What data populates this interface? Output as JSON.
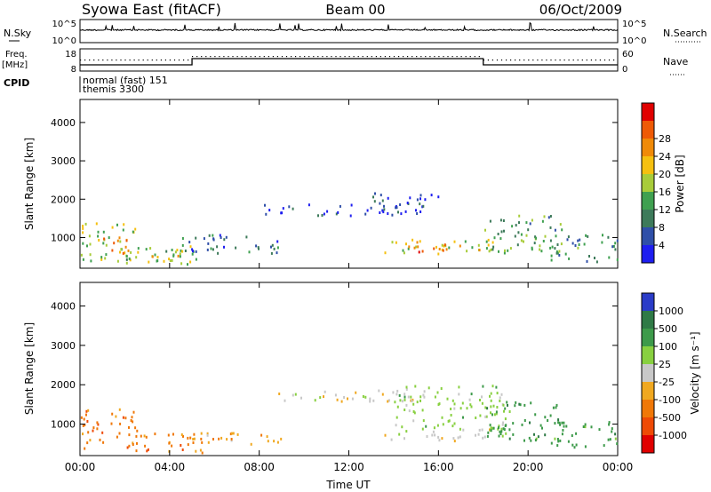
{
  "header": {
    "title": "Syowa East (fitACF)",
    "beam": "Beam 00",
    "date": "06/Oct/2009"
  },
  "status_panels": {
    "nsky_label": "N.Sky",
    "nsearch_label": "N.Search",
    "freq_label_line1": "Freq.",
    "freq_label_line2": "[MHz]",
    "nave_label": "Nave",
    "cpid_label": "CPID",
    "count_ticks_left": [
      "10^5",
      "10^0"
    ],
    "count_ticks_right": [
      "10^5",
      "10^0"
    ],
    "freq_ticks": [
      "18",
      "8"
    ],
    "nave_ticks": [
      "60",
      "0"
    ],
    "cpid_lines": [
      "normal (fast) 151",
      "themis 3300"
    ],
    "frequency_step_hours": [
      5.0,
      18.0
    ]
  },
  "chart_data": [
    {
      "type": "heatmap",
      "panel": "power",
      "ylabel": "Slant Range [km]",
      "y_ticks": [
        "1000",
        "2000",
        "3000",
        "4000"
      ],
      "ylim": [
        200,
        4600
      ],
      "xlim": [
        0,
        24
      ],
      "colorbar_label": "Power [dB]",
      "colorbar_ticks": [
        "4",
        "8",
        "12",
        "16",
        "20",
        "24",
        "28"
      ],
      "colorscale": [
        "#1e1ef0",
        "#2f4fa8",
        "#3d7a5a",
        "#3fa050",
        "#a8cc3a",
        "#f5c010",
        "#f08a08",
        "#ee5a06",
        "#e00000"
      ],
      "echo_regions": [
        {
          "start": 0.0,
          "end": 2.6,
          "lo": 400,
          "hi": 1400,
          "level": 0.5
        },
        {
          "start": 0.8,
          "end": 2.2,
          "lo": 600,
          "hi": 1100,
          "level": 0.75
        },
        {
          "start": 2.0,
          "end": 5.2,
          "lo": 300,
          "hi": 800,
          "level": 0.45
        },
        {
          "start": 3.0,
          "end": 4.5,
          "lo": 350,
          "hi": 600,
          "level": 0.7
        },
        {
          "start": 4.5,
          "end": 9.0,
          "lo": 600,
          "hi": 1100,
          "level": 0.2
        },
        {
          "start": 8.2,
          "end": 15.5,
          "lo": 1600,
          "hi": 1900,
          "level": 0.05
        },
        {
          "start": 13.0,
          "end": 16.0,
          "lo": 1800,
          "hi": 2200,
          "level": 0.08
        },
        {
          "start": 13.5,
          "end": 18.5,
          "lo": 600,
          "hi": 1000,
          "level": 0.55
        },
        {
          "start": 15.0,
          "end": 17.5,
          "lo": 650,
          "hi": 850,
          "level": 0.8
        },
        {
          "start": 18.0,
          "end": 21.5,
          "lo": 600,
          "hi": 1600,
          "level": 0.35
        },
        {
          "start": 21.0,
          "end": 24.0,
          "lo": 400,
          "hi": 1100,
          "level": 0.3
        }
      ]
    },
    {
      "type": "heatmap",
      "panel": "velocity",
      "ylabel": "Slant Range [km]",
      "y_ticks": [
        "1000",
        "2000",
        "3000",
        "4000"
      ],
      "ylim": [
        200,
        4600
      ],
      "xlim": [
        0,
        24
      ],
      "x_ticks": [
        "00:00",
        "04:00",
        "08:00",
        "12:00",
        "16:00",
        "20:00",
        "00:00"
      ],
      "xlabel": "Time UT",
      "colorbar_label": "Velocity [m s⁻¹]",
      "colorbar_ticks": [
        "1000",
        "500",
        "100",
        "25",
        "-25",
        "-100",
        "-500",
        "-1000"
      ],
      "colorscale": [
        "#2a3cc8",
        "#2f7a46",
        "#3d9a4a",
        "#88d040",
        "#c8c8c8",
        "#f0a820",
        "#f07808",
        "#ee4a06",
        "#e00000"
      ],
      "echo_regions": [
        {
          "start": 0.0,
          "end": 2.6,
          "lo": 400,
          "hi": 1400,
          "class": 6
        },
        {
          "start": 2.0,
          "end": 5.5,
          "lo": 300,
          "hi": 800,
          "class": 6
        },
        {
          "start": 4.5,
          "end": 9.0,
          "lo": 500,
          "hi": 800,
          "class": 5
        },
        {
          "start": 8.2,
          "end": 15.5,
          "lo": 1600,
          "hi": 1900,
          "class": 4
        },
        {
          "start": 13.5,
          "end": 18.5,
          "lo": 600,
          "hi": 900,
          "class": 4
        },
        {
          "start": 14.0,
          "end": 19.0,
          "lo": 900,
          "hi": 2000,
          "class": 3
        },
        {
          "start": 18.0,
          "end": 21.5,
          "lo": 600,
          "hi": 1600,
          "class": 2
        },
        {
          "start": 21.0,
          "end": 24.0,
          "lo": 400,
          "hi": 1100,
          "class": 2
        }
      ]
    }
  ]
}
